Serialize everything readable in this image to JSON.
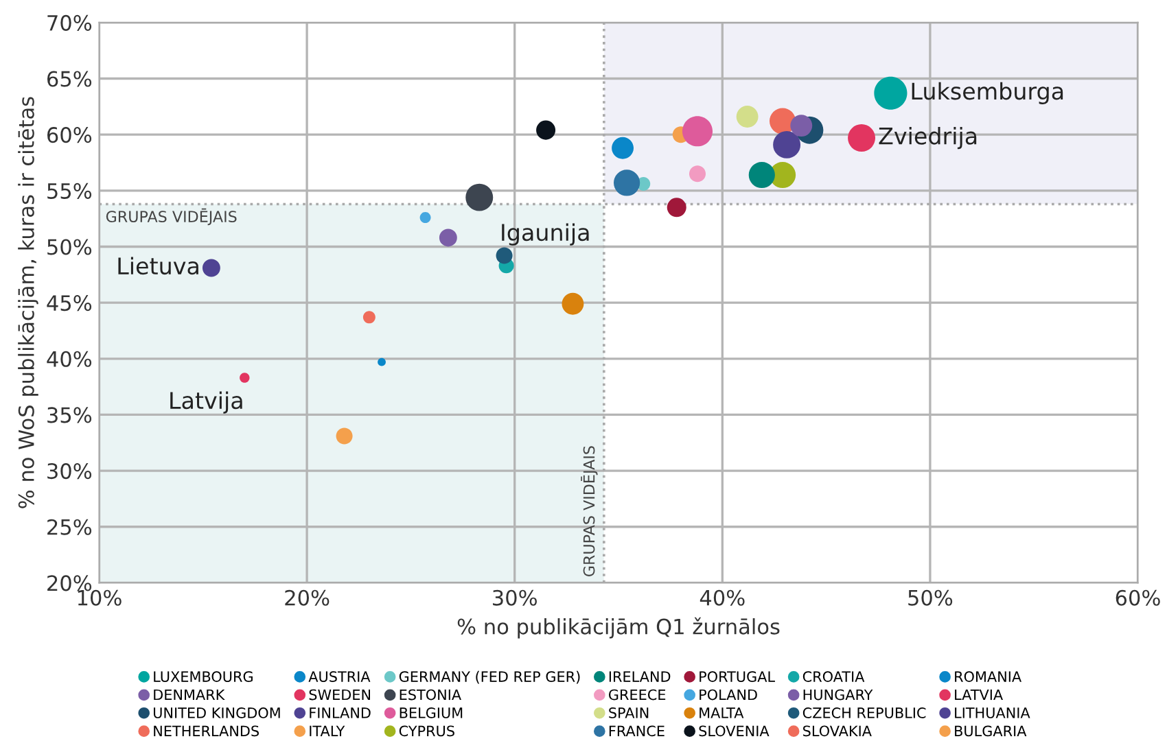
{
  "chart_data": {
    "type": "bubble",
    "xlabel": "% no publikācijām Q1 žurnālos",
    "ylabel": "% no WoS publikācijām, kuras ir citētas",
    "xlim": [
      10,
      60
    ],
    "xticks": [
      {
        "value": 10,
        "label": "10%"
      },
      {
        "value": 20,
        "label": "20%"
      },
      {
        "value": 30,
        "label": "30%"
      },
      {
        "value": 40,
        "label": "40%"
      },
      {
        "value": 50,
        "label": "50%"
      },
      {
        "value": 60,
        "label": "60%"
      }
    ],
    "ylim": [
      20,
      70
    ],
    "yticks": [
      {
        "value": 20,
        "label": "20%"
      },
      {
        "value": 25,
        "label": "25%"
      },
      {
        "value": 30,
        "label": "30%"
      },
      {
        "value": 35,
        "label": "35%"
      },
      {
        "value": 40,
        "label": "40%"
      },
      {
        "value": 45,
        "label": "45%"
      },
      {
        "value": 50,
        "label": "50%"
      },
      {
        "value": 55,
        "label": "55%"
      },
      {
        "value": 60,
        "label": "60%"
      },
      {
        "value": 65,
        "label": "65%"
      },
      {
        "value": 70,
        "label": "70%"
      }
    ],
    "grid": true,
    "legend": "bottom",
    "marker": "circle",
    "ref_lines": [
      {
        "axis": "x",
        "value": 34.3,
        "label": "GRUPAS VIDĒJAIS",
        "line_style": "dotted",
        "color": "#aaaaaa"
      },
      {
        "axis": "y",
        "value": 53.8,
        "label": "GRUPAS VIDĒJAIS",
        "line_style": "dotted",
        "color": "#aaaaaa"
      }
    ],
    "bands": [
      {
        "axis": "x",
        "from": 10,
        "to": 34.3,
        "color": "#eaf4f4"
      },
      {
        "axis": "x",
        "from": 34.3,
        "to": 60,
        "color": "#f0f0f8"
      }
    ],
    "annotations": [
      {
        "text": "Luksemburga",
        "x": 48.1,
        "y": 63.7
      },
      {
        "text": "Zviedrija",
        "x": 46.7,
        "y": 59.7
      },
      {
        "text": "Igaunija",
        "x": 28.3,
        "y": 54.4
      },
      {
        "text": "Lietuva",
        "x": 15.4,
        "y": 48.1
      },
      {
        "text": "Latvija",
        "x": 17.0,
        "y": 38.3
      }
    ],
    "series": [
      {
        "name": "LUXEMBOURG",
        "color": "#00a6a0",
        "x": [
          48.1
        ],
        "values": [
          63.7
        ],
        "sizes": [
          1
        ]
      },
      {
        "name": "DENMARK",
        "color": "#7b5ea7",
        "x": [
          26.8
        ],
        "values": [
          50.8
        ],
        "sizes": [
          0.29
        ]
      },
      {
        "name": "UNITED KINGDOM",
        "color": "#1d4f6e",
        "x": [
          44.2
        ],
        "values": [
          60.4
        ],
        "sizes": [
          0.69
        ]
      },
      {
        "name": "NETHERLANDS",
        "color": "#ef6c5a",
        "x": [
          42.9
        ],
        "values": [
          61.2
        ],
        "sizes": [
          0.63
        ]
      },
      {
        "name": "AUSTRIA",
        "color": "#0a87c9",
        "x": [
          35.2
        ],
        "values": [
          58.8
        ],
        "sizes": [
          0.44
        ]
      },
      {
        "name": "SWEDEN",
        "color": "#e23560",
        "x": [
          46.7
        ],
        "values": [
          59.7
        ],
        "sizes": [
          0.69
        ]
      },
      {
        "name": "FINLAND",
        "color": "#4f4393",
        "x": [
          43.1
        ],
        "values": [
          59.1
        ],
        "sizes": [
          0.69
        ]
      },
      {
        "name": "ITALY",
        "color": "#f4a04c",
        "x": [
          38.0
        ],
        "values": [
          60.0
        ],
        "sizes": [
          0.25
        ]
      },
      {
        "name": "GERMANY (FED REP GER)",
        "color": "#6cc8c8",
        "x": [
          36.2
        ],
        "values": [
          55.6
        ],
        "sizes": [
          0.17
        ]
      },
      {
        "name": "ESTONIA",
        "color": "#3d4550",
        "x": [
          28.3
        ],
        "values": [
          54.4
        ],
        "sizes": [
          0.69
        ]
      },
      {
        "name": "BELGIUM",
        "color": "#de5b9b",
        "x": [
          38.8
        ],
        "values": [
          60.3
        ],
        "sizes": [
          0.84
        ]
      },
      {
        "name": "CYPRUS",
        "color": "#a2b51e",
        "x": [
          42.9
        ],
        "values": [
          56.4
        ],
        "sizes": [
          0.63
        ]
      },
      {
        "name": "IRELAND",
        "color": "#00857a",
        "x": [
          41.9
        ],
        "values": [
          56.4
        ],
        "sizes": [
          0.63
        ]
      },
      {
        "name": "GREECE",
        "color": "#f29bc1",
        "x": [
          38.8
        ],
        "values": [
          56.5
        ],
        "sizes": [
          0.25
        ]
      },
      {
        "name": "SPAIN",
        "color": "#d3de8a",
        "x": [
          41.2
        ],
        "values": [
          61.6
        ],
        "sizes": [
          0.44
        ]
      },
      {
        "name": "FRANCE",
        "color": "#2e74a4",
        "x": [
          35.4
        ],
        "values": [
          55.7
        ],
        "sizes": [
          0.63
        ]
      },
      {
        "name": "PORTUGAL",
        "color": "#a0183a",
        "x": [
          37.8
        ],
        "values": [
          53.5
        ],
        "sizes": [
          0.34
        ]
      },
      {
        "name": "POLAND",
        "color": "#45a7e0",
        "x": [
          25.7
        ],
        "values": [
          52.6
        ],
        "sizes": [
          0.11
        ]
      },
      {
        "name": "MALTA",
        "color": "#d9820d",
        "x": [
          32.8
        ],
        "values": [
          44.9
        ],
        "sizes": [
          0.44
        ]
      },
      {
        "name": "SLOVENIA",
        "color": "#0b131c",
        "x": [
          31.5
        ],
        "values": [
          60.4
        ],
        "sizes": [
          0.34
        ]
      },
      {
        "name": "CROATIA",
        "color": "#14a8a8",
        "x": [
          29.6
        ],
        "values": [
          48.3
        ],
        "sizes": [
          0.21
        ]
      },
      {
        "name": "HUNGARY",
        "color": "#7b5ea7",
        "x": [
          43.8
        ],
        "values": [
          60.8
        ],
        "sizes": [
          0.44
        ]
      },
      {
        "name": "CZECH REPUBLIC",
        "color": "#1f5a7a",
        "x": [
          29.5
        ],
        "values": [
          49.2
        ],
        "sizes": [
          0.25
        ]
      },
      {
        "name": "SLOVAKIA",
        "color": "#ef6c5a",
        "x": [
          23.0
        ],
        "values": [
          43.7
        ],
        "sizes": [
          0.14
        ]
      },
      {
        "name": "ROMANIA",
        "color": "#0a87c9",
        "x": [
          23.6
        ],
        "values": [
          39.7
        ],
        "sizes": [
          0.06
        ]
      },
      {
        "name": "LATVIA",
        "color": "#e23560",
        "x": [
          17.0
        ],
        "values": [
          38.3
        ],
        "sizes": [
          0.09
        ]
      },
      {
        "name": "LITHUANIA",
        "color": "#4f4393",
        "x": [
          15.4
        ],
        "values": [
          48.1
        ],
        "sizes": [
          0.29
        ]
      },
      {
        "name": "BULGARIA",
        "color": "#f4a04c",
        "x": [
          21.8
        ],
        "values": [
          33.1
        ],
        "sizes": [
          0.25
        ]
      }
    ]
  }
}
